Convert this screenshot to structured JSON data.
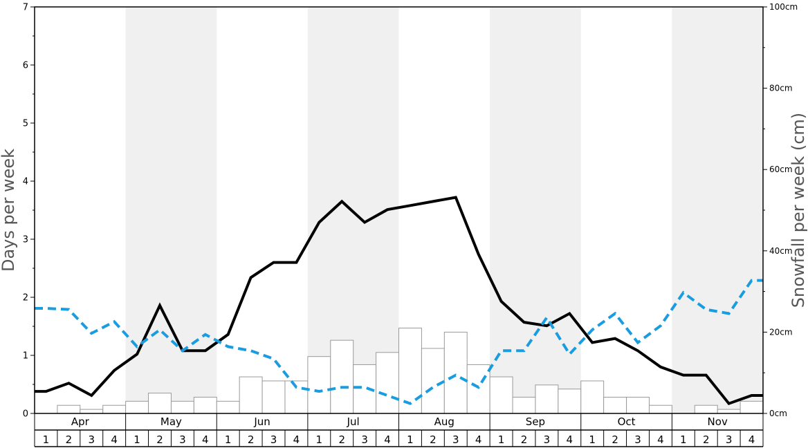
{
  "chart_data": {
    "type": "bar+line",
    "title": "",
    "ylabel_left": "Days per week",
    "ylabel_right": "Snowfall per week (cm)",
    "ylim_left": [
      0,
      7
    ],
    "ylim_right": [
      0,
      100
    ],
    "left_ticks": [
      "0",
      "1",
      "2",
      "3",
      "4",
      "5",
      "6",
      "7"
    ],
    "right_ticks": [
      "0cm",
      "20cm",
      "40cm",
      "60cm",
      "80cm",
      "100cm"
    ],
    "months": [
      "Apr",
      "May",
      "Jun",
      "Jul",
      "Aug",
      "Sep",
      "Oct",
      "Nov"
    ],
    "weeks": [
      "1",
      "2",
      "3",
      "4"
    ],
    "shaded_months": [
      1,
      3,
      5,
      7
    ],
    "colors": {
      "bars_fill": "#ffffff",
      "bars_stroke": "#999999",
      "solid_line": "#000000",
      "dashed_line": "#1a9ce0",
      "shade": "#f0f0f0"
    },
    "series": [
      {
        "kind": "bar",
        "axis": "right",
        "values": [
          0,
          2,
          1,
          2,
          3,
          5,
          3,
          4,
          3,
          9,
          8,
          8,
          14,
          18,
          12,
          15,
          21,
          16,
          20,
          12,
          9,
          4,
          7,
          6,
          8,
          4,
          4,
          2,
          0,
          2,
          1,
          3
        ]
      },
      {
        "kind": "line",
        "style": "solid",
        "axis": "left",
        "values": [
          0.38,
          0.52,
          0.31,
          0.74,
          1.02,
          1.86,
          1.08,
          1.08,
          1.36,
          2.34,
          2.6,
          2.6,
          3.29,
          3.65,
          3.29,
          3.51,
          3.58,
          3.65,
          3.72,
          2.74,
          1.93,
          1.57,
          1.51,
          1.72,
          1.22,
          1.29,
          1.08,
          0.8,
          0.66,
          0.66,
          0.17,
          0.31
        ]
      },
      {
        "kind": "line",
        "style": "dashed",
        "axis": "left",
        "values": [
          1.81,
          1.79,
          1.38,
          1.58,
          1.15,
          1.44,
          1.08,
          1.36,
          1.15,
          1.08,
          0.94,
          0.45,
          0.38,
          0.45,
          0.45,
          0.31,
          0.17,
          0.45,
          0.66,
          0.45,
          1.08,
          1.08,
          1.65,
          1.02,
          1.44,
          1.72,
          1.22,
          1.51,
          2.08,
          1.79,
          1.72,
          2.29
        ]
      }
    ]
  }
}
